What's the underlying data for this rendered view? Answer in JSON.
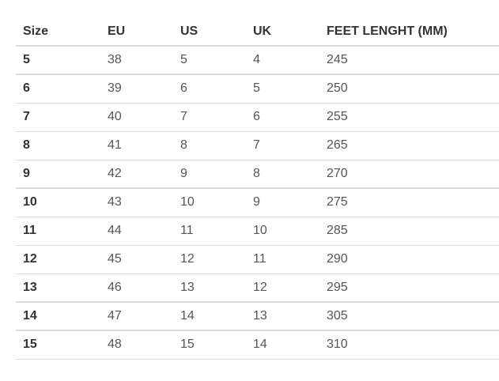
{
  "headers": [
    "Size",
    "EU",
    "US",
    "UK",
    "FEET LENGHT (MM)"
  ],
  "rows": [
    [
      "5",
      "38",
      "5",
      "4",
      "245"
    ],
    [
      "6",
      "39",
      "6",
      "5",
      "250"
    ],
    [
      "7",
      "40",
      "7",
      "6",
      "255"
    ],
    [
      "8",
      "41",
      "8",
      "7",
      "265"
    ],
    [
      "9",
      "42",
      "9",
      "8",
      "270"
    ],
    [
      "10",
      "43",
      "10",
      "9",
      "275"
    ],
    [
      "11",
      "44",
      "11",
      "10",
      "285"
    ],
    [
      "12",
      "45",
      "12",
      "11",
      "290"
    ],
    [
      "13",
      "46",
      "13",
      "12",
      "295"
    ],
    [
      "14",
      "47",
      "14",
      "13",
      "305"
    ],
    [
      "15",
      "48",
      "15",
      "14",
      "310"
    ]
  ]
}
